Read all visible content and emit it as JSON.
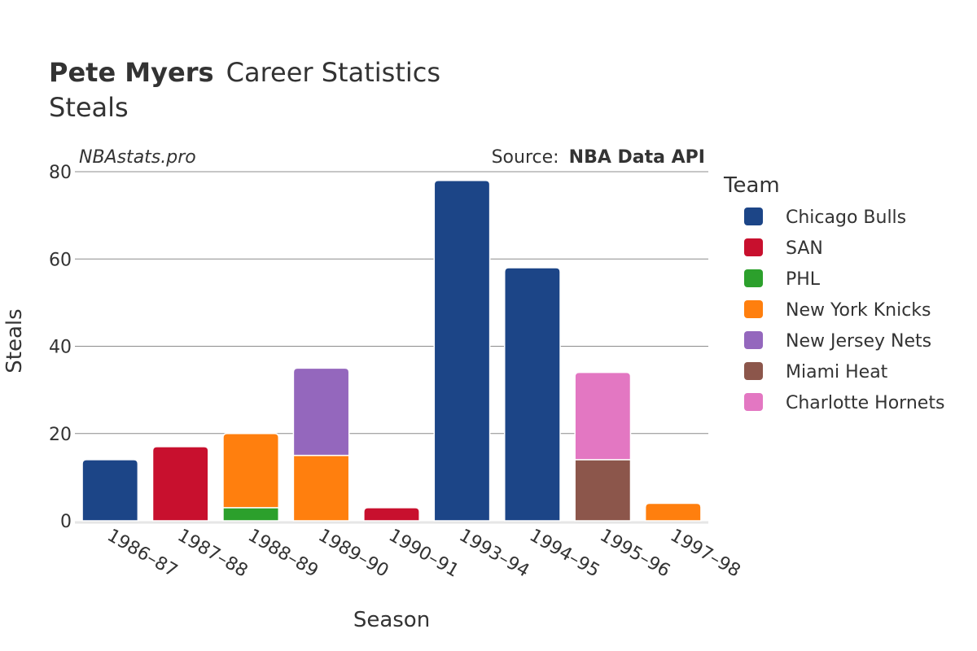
{
  "header": {
    "title_bold": "Pete Myers",
    "title_rest": "Career Statistics",
    "subtitle": "Steals",
    "brand": "NBAstats.pro",
    "source_prefix": "Source:",
    "source_name": "NBA Data API"
  },
  "legend": {
    "title": "Team"
  },
  "chart_data": {
    "type": "bar",
    "stacked": true,
    "xlabel": "Season",
    "ylabel": "Steals",
    "ylim": [
      0,
      80
    ],
    "yticks": [
      0,
      20,
      40,
      60,
      80
    ],
    "grid": true,
    "legend_position": "right",
    "categories": [
      "1986–87",
      "1987–88",
      "1988–89",
      "1989–90",
      "1990–91",
      "1993–94",
      "1994–95",
      "1995–96",
      "1997–98"
    ],
    "series": [
      {
        "name": "Chicago Bulls",
        "color": "#1c4587",
        "values": [
          14,
          0,
          0,
          0,
          0,
          78,
          58,
          0,
          0
        ]
      },
      {
        "name": "SAN",
        "color": "#c8102e",
        "values": [
          0,
          17,
          0,
          0,
          3,
          0,
          0,
          0,
          0
        ]
      },
      {
        "name": "PHL",
        "color": "#2ca02c",
        "values": [
          0,
          0,
          3,
          0,
          0,
          0,
          0,
          0,
          0
        ]
      },
      {
        "name": "New York Knicks",
        "color": "#ff7f0e",
        "values": [
          0,
          0,
          17,
          15,
          0,
          0,
          0,
          0,
          4
        ]
      },
      {
        "name": "New Jersey Nets",
        "color": "#9467bd",
        "values": [
          0,
          0,
          0,
          20,
          0,
          0,
          0,
          0,
          0
        ]
      },
      {
        "name": "Miami Heat",
        "color": "#8c564b",
        "values": [
          0,
          0,
          0,
          0,
          0,
          0,
          0,
          14,
          0
        ]
      },
      {
        "name": "Charlotte Hornets",
        "color": "#e377c2",
        "values": [
          0,
          0,
          0,
          0,
          0,
          0,
          0,
          20,
          0
        ]
      }
    ]
  }
}
